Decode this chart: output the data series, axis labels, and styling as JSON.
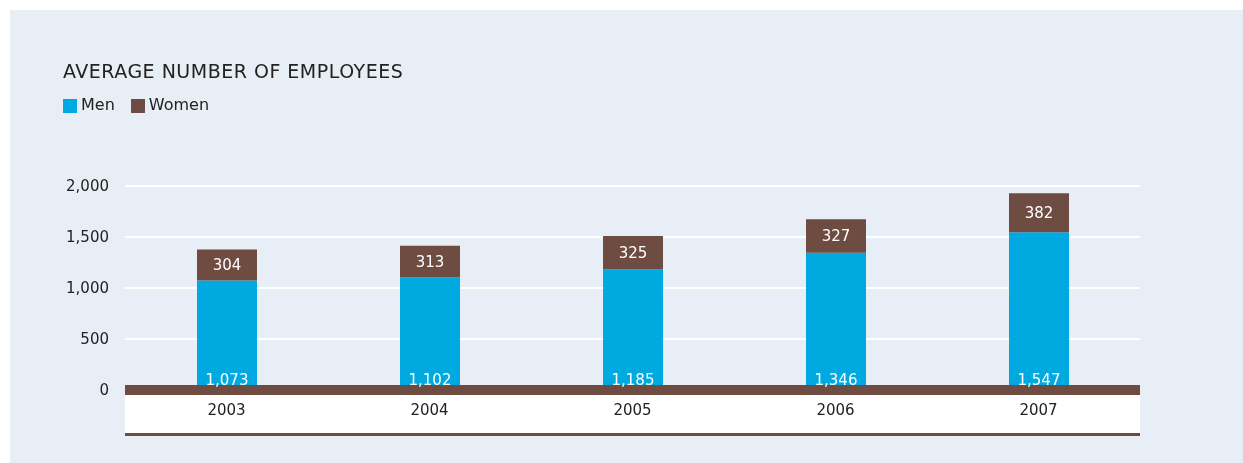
{
  "chart_data": {
    "type": "bar",
    "title": "AVERAGE NUMBER OF EMPLOYEES",
    "categories": [
      "2003",
      "2004",
      "2005",
      "2006",
      "2007"
    ],
    "series": [
      {
        "name": "Men",
        "color": "#00a9e0",
        "values": [
          1073,
          1102,
          1185,
          1346,
          1547
        ],
        "value_labels": [
          "1,073",
          "1,102",
          "1,185",
          "1,346",
          "1,547"
        ]
      },
      {
        "name": "Women",
        "color": "#6e4c42",
        "values": [
          304,
          313,
          325,
          327,
          382
        ],
        "value_labels": [
          "304",
          "313",
          "325",
          "327",
          "382"
        ]
      }
    ],
    "stacked": true,
    "ylim": [
      0,
      2000
    ],
    "yticks": [
      0,
      500,
      {
        "value": 1000,
        "label": "1,000"
      },
      {
        "value": 1500,
        "label": "1,500"
      },
      {
        "value": 2000,
        "label": "2,000"
      }
    ],
    "grid": "y",
    "legend": "top left"
  }
}
